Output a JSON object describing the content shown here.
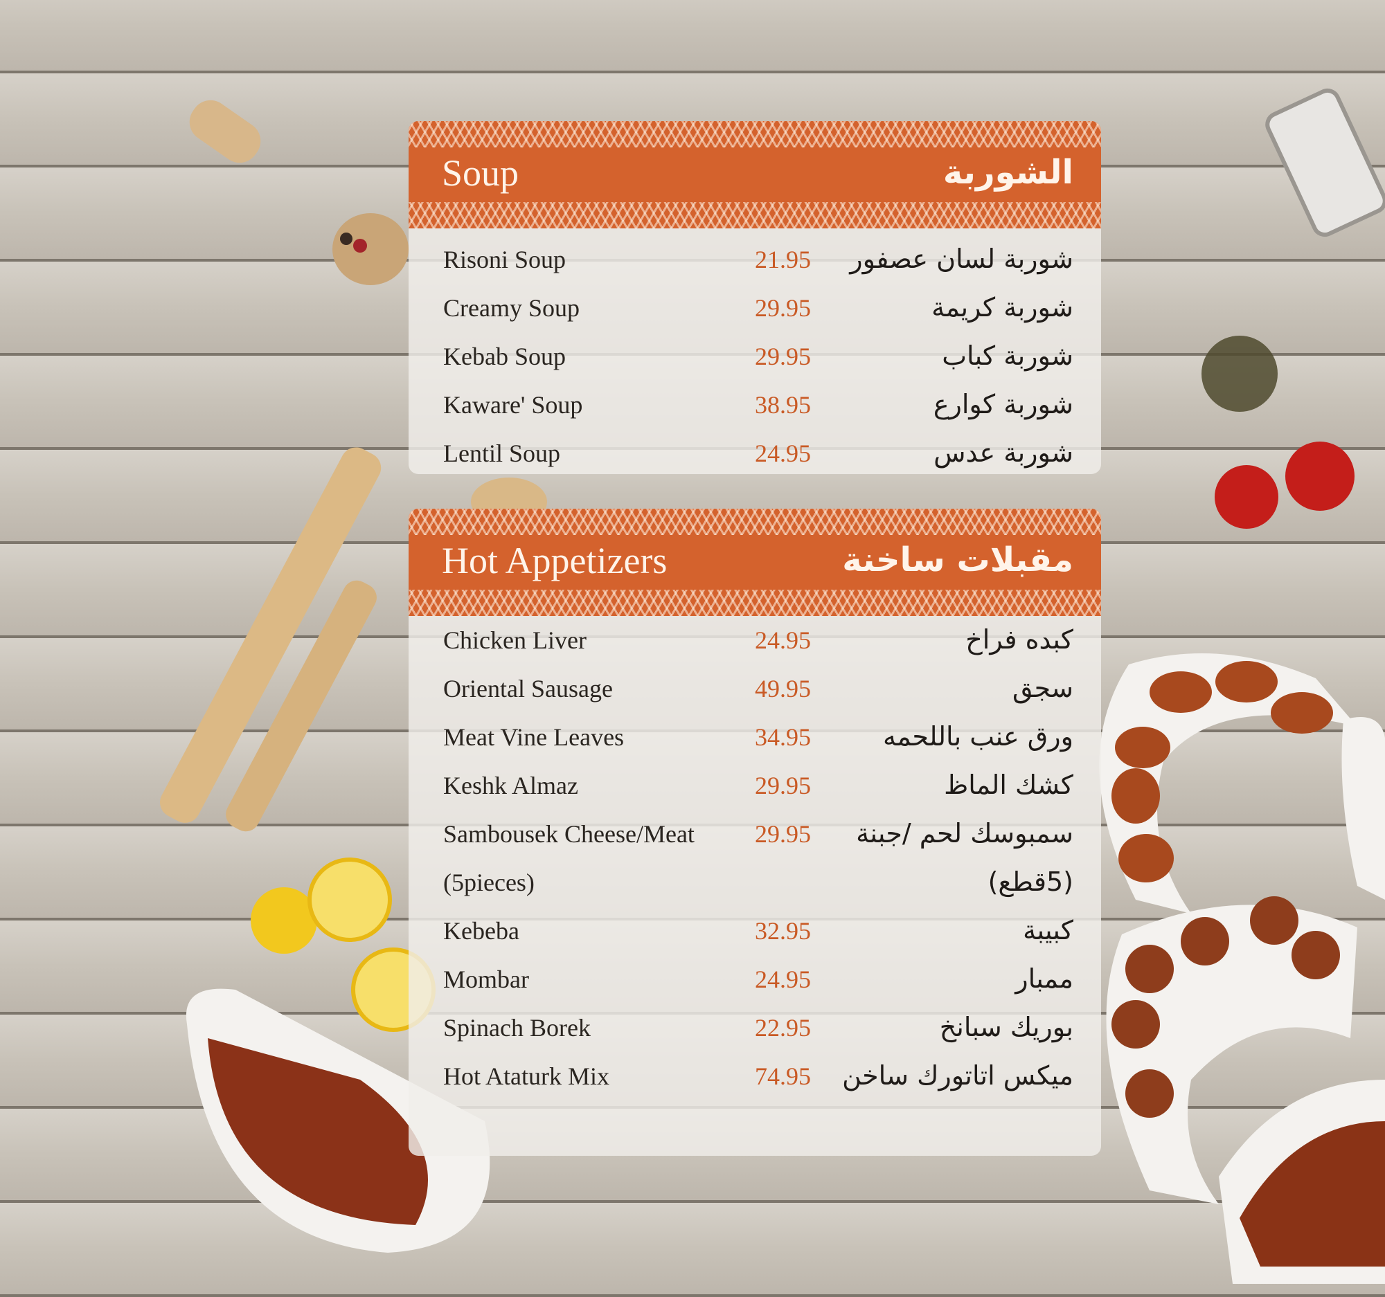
{
  "sections": [
    {
      "title_en": "Soup",
      "title_ar": "الشوربة",
      "items": [
        {
          "en": "Risoni Soup",
          "price": "21.95",
          "ar": "شوربة لسان عصفور"
        },
        {
          "en": "Creamy Soup",
          "price": "29.95",
          "ar": "شوربة كريمة"
        },
        {
          "en": "Kebab Soup",
          "price": "29.95",
          "ar": "شوربة كباب"
        },
        {
          "en": "Kaware' Soup",
          "price": "38.95",
          "ar": "شوربة كوارع"
        },
        {
          "en": "Lentil Soup",
          "price": "24.95",
          "ar": "شوربة عدس"
        }
      ]
    },
    {
      "title_en": "Hot Appetizers",
      "title_ar": "مقبلات ساخنة",
      "items": [
        {
          "en": "Chicken Liver",
          "price": "24.95",
          "ar": "كبده فراخ"
        },
        {
          "en": "Oriental Sausage",
          "price": "49.95",
          "ar": "سجق"
        },
        {
          "en": "Meat Vine Leaves",
          "price": "34.95",
          "ar": "ورق عنب باللحمه"
        },
        {
          "en": "Keshk Almaz",
          "price": "29.95",
          "ar": "كشك الماظ"
        },
        {
          "en": "Sambousek Cheese/Meat",
          "price": "29.95",
          "ar": "سمبوسك لحم /جبنة"
        },
        {
          "en": "(5pieces)",
          "price": "",
          "ar": "(5قطع)"
        },
        {
          "en": "Kebeba",
          "price": "32.95",
          "ar": "كبيبة"
        },
        {
          "en": "Mombar",
          "price": "24.95",
          "ar": "ممبار"
        },
        {
          "en": "Spinach Borek",
          "price": "22.95",
          "ar": "بوريك سبانخ"
        },
        {
          "en": "Hot Ataturk Mix",
          "price": "74.95",
          "ar": "ميكس اتاتورك ساخن"
        }
      ]
    }
  ],
  "colors": {
    "accent": "#d4622d",
    "price": "#c95a25",
    "wood": "#c9c3ba"
  }
}
